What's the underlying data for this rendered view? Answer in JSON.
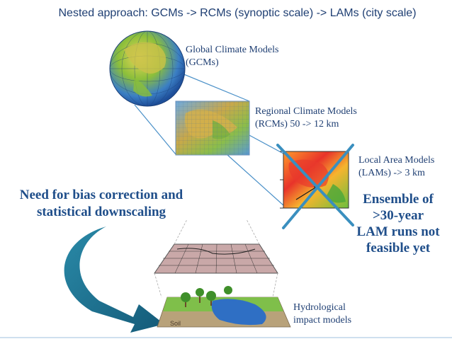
{
  "title": "Nested approach: GCMs -> RCMs (synoptic scale) -> LAMs (city scale)",
  "gcm": {
    "line1": "Global Climate Models",
    "line2": "(GCMs)"
  },
  "rcm": {
    "line1": "Regional Climate Models",
    "line2": "(RCMs)   50 -> 12 km"
  },
  "lam": {
    "line1": "Local Area Models",
    "line2": "(LAMs)  -> 3 km"
  },
  "bias": {
    "line1": "Need for bias correction and",
    "line2": "statistical downscaling"
  },
  "ensemble": {
    "line1": "Ensemble of",
    "line2": ">30-year",
    "line3": "LAM runs not",
    "line4": "feasible yet"
  },
  "hydro": {
    "line1": "Hydrological",
    "line2": "impact models",
    "soil_label": "Soil"
  },
  "colors": {
    "text_blue": "#1f3f73",
    "connector": "#4a90c8",
    "cross": "#3a8fbf",
    "curved_arrow": "#1f6e8c"
  }
}
